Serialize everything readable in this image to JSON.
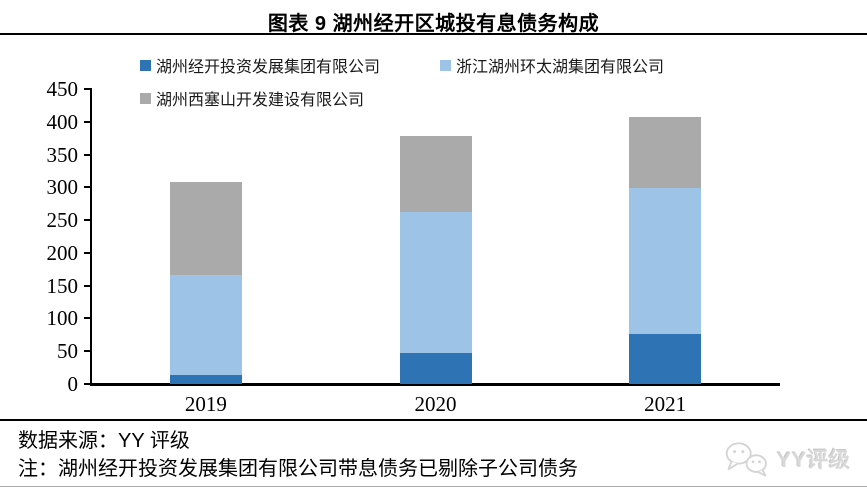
{
  "chart_data": {
    "type": "bar",
    "stacked": true,
    "title": "图表 9 湖州经开区城投有息债务构成",
    "categories": [
      "2019",
      "2020",
      "2021"
    ],
    "series": [
      {
        "name": "湖州经开投资发展集团有限公司",
        "color": "#2E74B5",
        "values": [
          13,
          48,
          76
        ]
      },
      {
        "name": "浙江湖州环太湖集团有限公司",
        "color": "#9DC3E6",
        "values": [
          154,
          215,
          223
        ]
      },
      {
        "name": "湖州西塞山开发建设有限公司",
        "color": "#ABAAAA",
        "values": [
          141,
          116,
          109
        ]
      }
    ],
    "stack_totals": [
      308,
      379,
      408
    ],
    "xlabel": "",
    "ylabel": "",
    "ylim": [
      0,
      450
    ],
    "ytick_step": 50,
    "grid": false,
    "legend_position": "top"
  },
  "footer": {
    "source": "数据来源：YY 评级",
    "note": "注：湖州经开投资发展集团有限公司带息债务已剔除子公司债务",
    "watermark": {
      "icon": "wechat-logo-icon",
      "label": "YY评级"
    }
  },
  "colors": {
    "axis": "#000000",
    "title_rule": "#000000",
    "bottom_rule": "#ababab",
    "watermark": "#d8d8d8"
  }
}
